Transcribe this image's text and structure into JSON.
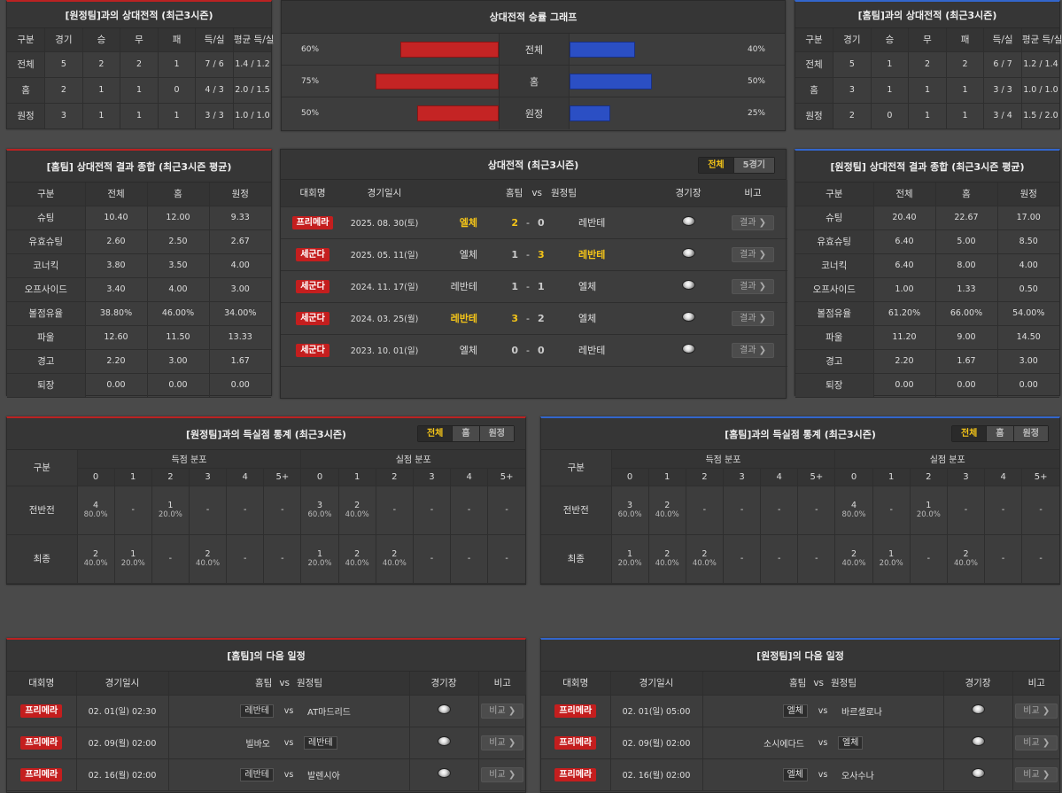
{
  "h2h_away": {
    "title": "[원정팀]과의 상대전적 (최근3시즌)",
    "headers": [
      "구분",
      "경기",
      "승",
      "무",
      "패",
      "득/실",
      "평균 득/실"
    ],
    "rows": [
      [
        "전체",
        "5",
        "2",
        "2",
        "1",
        "7 / 6",
        "1.4 / 1.2"
      ],
      [
        "홈",
        "2",
        "1",
        "1",
        "0",
        "4 / 3",
        "2.0 / 1.5"
      ],
      [
        "원정",
        "3",
        "1",
        "1",
        "1",
        "3 / 3",
        "1.0 / 1.0"
      ]
    ]
  },
  "winrate": {
    "title": "상대전적 승률 그래프",
    "rows": [
      {
        "label": "전체",
        "left": "60%",
        "right": "40%",
        "left_value": 60,
        "right_value": 40
      },
      {
        "label": "홈",
        "left": "75%",
        "right": "50%",
        "left_value": 75,
        "right_value": 50
      },
      {
        "label": "원정",
        "left": "50%",
        "right": "25%",
        "left_value": 50,
        "right_value": 25
      }
    ]
  },
  "h2h_home": {
    "title": "[홈팀]과의 상대전적 (최근3시즌)",
    "headers": [
      "구분",
      "경기",
      "승",
      "무",
      "패",
      "득/실",
      "평균 득/실"
    ],
    "rows": [
      [
        "전체",
        "5",
        "1",
        "2",
        "2",
        "6 / 7",
        "1.2 / 1.4"
      ],
      [
        "홈",
        "3",
        "1",
        "1",
        "1",
        "3 / 3",
        "1.0 / 1.0"
      ],
      [
        "원정",
        "2",
        "0",
        "1",
        "1",
        "3 / 4",
        "1.5 / 2.0"
      ]
    ]
  },
  "summary_home": {
    "title": "[홈팀] 상대전적 결과 종합 (최근3시즌 평균)",
    "headers": [
      "구분",
      "전체",
      "홈",
      "원정"
    ],
    "rows": [
      [
        "슈팅",
        "10.40",
        "12.00",
        "9.33"
      ],
      [
        "유효슈팅",
        "2.60",
        "2.50",
        "2.67"
      ],
      [
        "코너킥",
        "3.80",
        "3.50",
        "4.00"
      ],
      [
        "오프사이드",
        "3.40",
        "4.00",
        "3.00"
      ],
      [
        "볼점유율",
        "38.80%",
        "46.00%",
        "34.00%"
      ],
      [
        "파울",
        "12.60",
        "11.50",
        "13.33"
      ],
      [
        "경고",
        "2.20",
        "3.00",
        "1.67"
      ],
      [
        "퇴장",
        "0.00",
        "0.00",
        "0.00"
      ]
    ]
  },
  "summary_away": {
    "title": "[원정팀] 상대전적 결과 종합 (최근3시즌 평균)",
    "headers": [
      "구분",
      "전체",
      "홈",
      "원정"
    ],
    "rows": [
      [
        "슈팅",
        "20.40",
        "22.67",
        "17.00"
      ],
      [
        "유효슈팅",
        "6.40",
        "5.00",
        "8.50"
      ],
      [
        "코너킥",
        "6.40",
        "8.00",
        "4.00"
      ],
      [
        "오프사이드",
        "1.00",
        "1.33",
        "0.50"
      ],
      [
        "볼점유율",
        "61.20%",
        "66.00%",
        "54.00%"
      ],
      [
        "파울",
        "11.20",
        "9.00",
        "14.50"
      ],
      [
        "경고",
        "2.20",
        "1.67",
        "3.00"
      ],
      [
        "퇴장",
        "0.00",
        "0.00",
        "0.00"
      ]
    ]
  },
  "h2h_list": {
    "title": "상대전적 (최근3시즌)",
    "tabs": [
      "전체",
      "5경기"
    ],
    "headers": {
      "league": "대회명",
      "date": "경기일시",
      "home": "홈팀",
      "vs": "vs",
      "away": "원정팀",
      "venue": "경기장",
      "note": "비고"
    },
    "result_label": "결과 ❯",
    "matches": [
      {
        "league": "프리메라",
        "date": "2025. 08. 30(토)",
        "home": "엘체",
        "hs": "2",
        "as": "0",
        "away": "레반테",
        "win": "home"
      },
      {
        "league": "세군다",
        "date": "2025. 05. 11(일)",
        "home": "엘체",
        "hs": "1",
        "as": "3",
        "away": "레반테",
        "win": "away"
      },
      {
        "league": "세군다",
        "date": "2024. 11. 17(일)",
        "home": "레반테",
        "hs": "1",
        "as": "1",
        "away": "엘체",
        "win": "draw"
      },
      {
        "league": "세군다",
        "date": "2024. 03. 25(월)",
        "home": "레반테",
        "hs": "3",
        "as": "2",
        "away": "엘체",
        "win": "home"
      },
      {
        "league": "세군다",
        "date": "2023. 10. 01(일)",
        "home": "엘체",
        "hs": "0",
        "as": "0",
        "away": "레반테",
        "win": "draw"
      }
    ]
  },
  "goals_away": {
    "title": "[원정팀]과의 득실점 통계 (최근3시즌)",
    "tabs": [
      "전체",
      "홈",
      "원정"
    ],
    "col_label": "구분",
    "scored": "득점 분포",
    "conceded": "실점 분포",
    "buckets": [
      "0",
      "1",
      "2",
      "3",
      "4",
      "5+"
    ],
    "rows": [
      {
        "label": "전반전",
        "cells": [
          [
            "4",
            "80.0%"
          ],
          [
            "-",
            ""
          ],
          [
            "1",
            "20.0%"
          ],
          [
            "-",
            ""
          ],
          [
            "-",
            ""
          ],
          [
            "-",
            ""
          ],
          [
            "3",
            "60.0%"
          ],
          [
            "2",
            "40.0%"
          ],
          [
            "-",
            ""
          ],
          [
            "-",
            ""
          ],
          [
            "-",
            ""
          ],
          [
            "-",
            ""
          ]
        ]
      },
      {
        "label": "최종",
        "cells": [
          [
            "2",
            "40.0%"
          ],
          [
            "1",
            "20.0%"
          ],
          [
            "-",
            ""
          ],
          [
            "2",
            "40.0%"
          ],
          [
            "-",
            ""
          ],
          [
            "-",
            ""
          ],
          [
            "1",
            "20.0%"
          ],
          [
            "2",
            "40.0%"
          ],
          [
            "2",
            "40.0%"
          ],
          [
            "-",
            ""
          ],
          [
            "-",
            ""
          ],
          [
            "-",
            ""
          ]
        ]
      }
    ]
  },
  "goals_home": {
    "title": "[홈팀]과의 득실점 통계 (최근3시즌)",
    "tabs": [
      "전체",
      "홈",
      "원정"
    ],
    "col_label": "구분",
    "scored": "득점 분포",
    "conceded": "실점 분포",
    "buckets": [
      "0",
      "1",
      "2",
      "3",
      "4",
      "5+"
    ],
    "rows": [
      {
        "label": "전반전",
        "cells": [
          [
            "3",
            "60.0%"
          ],
          [
            "2",
            "40.0%"
          ],
          [
            "-",
            ""
          ],
          [
            "-",
            ""
          ],
          [
            "-",
            ""
          ],
          [
            "-",
            ""
          ],
          [
            "4",
            "80.0%"
          ],
          [
            "-",
            ""
          ],
          [
            "1",
            "20.0%"
          ],
          [
            "-",
            ""
          ],
          [
            "-",
            ""
          ],
          [
            "-",
            ""
          ]
        ]
      },
      {
        "label": "최종",
        "cells": [
          [
            "1",
            "20.0%"
          ],
          [
            "2",
            "40.0%"
          ],
          [
            "2",
            "40.0%"
          ],
          [
            "-",
            ""
          ],
          [
            "-",
            ""
          ],
          [
            "-",
            ""
          ],
          [
            "2",
            "40.0%"
          ],
          [
            "1",
            "20.0%"
          ],
          [
            "-",
            ""
          ],
          [
            "2",
            "40.0%"
          ],
          [
            "-",
            ""
          ],
          [
            "-",
            ""
          ]
        ]
      }
    ]
  },
  "next_home": {
    "title": "[홈팀]의 다음 일정",
    "headers": {
      "league": "대회명",
      "date": "경기일시",
      "home": "홈팀",
      "vs": "vs",
      "away": "원정팀",
      "venue": "경기장",
      "note": "비고"
    },
    "btn": "비교 ❯",
    "matches": [
      {
        "league": "프리메라",
        "date": "02. 01(일) 02:30",
        "home": "레반테",
        "away": "AT마드리드",
        "boxed": "home"
      },
      {
        "league": "프리메라",
        "date": "02. 09(월) 02:00",
        "home": "빌바오",
        "away": "레반테",
        "boxed": "away"
      },
      {
        "league": "프리메라",
        "date": "02. 16(월) 02:00",
        "home": "레반테",
        "away": "발렌시아",
        "boxed": "home"
      }
    ]
  },
  "next_away": {
    "title": "[원정팀]의 다음 일정",
    "headers": {
      "league": "대회명",
      "date": "경기일시",
      "home": "홈팀",
      "vs": "vs",
      "away": "원정팀",
      "venue": "경기장",
      "note": "비고"
    },
    "btn": "비교 ❯",
    "matches": [
      {
        "league": "프리메라",
        "date": "02. 01(일) 05:00",
        "home": "엘체",
        "away": "바르셀로나",
        "boxed": "home"
      },
      {
        "league": "프리메라",
        "date": "02. 09(월) 02:00",
        "home": "소시에다드",
        "away": "엘체",
        "boxed": "away"
      },
      {
        "league": "프리메라",
        "date": "02. 16(월) 02:00",
        "home": "엘체",
        "away": "오사수나",
        "boxed": "home"
      }
    ]
  }
}
